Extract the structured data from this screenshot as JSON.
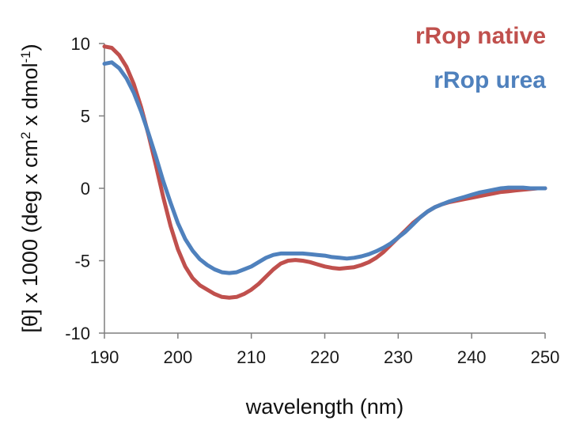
{
  "chart_data": {
    "type": "line",
    "title": "",
    "xlabel": "wavelength (nm)",
    "ylabel_main": "[θ] x 1000 (deg x cm",
    "ylabel_sup1": "2",
    "ylabel_mid": " x dmol",
    "ylabel_sup2": "-1",
    "ylabel_end": ")",
    "xlim": [
      190,
      250
    ],
    "ylim": [
      -10,
      10
    ],
    "xticks": [
      190,
      200,
      210,
      220,
      230,
      240,
      250
    ],
    "yticks": [
      -10,
      -5,
      0,
      5,
      10
    ],
    "grid": false,
    "legend_position": "top-right",
    "series": [
      {
        "name": "rRop native",
        "color": "#c0504d",
        "x": [
          190,
          191,
          192,
          193,
          194,
          195,
          196,
          197,
          198,
          199,
          200,
          201,
          202,
          203,
          204,
          205,
          206,
          207,
          208,
          209,
          210,
          211,
          212,
          213,
          214,
          215,
          216,
          217,
          218,
          219,
          220,
          221,
          222,
          223,
          224,
          225,
          226,
          227,
          228,
          229,
          230,
          231,
          232,
          233,
          234,
          235,
          236,
          237,
          238,
          239,
          240,
          241,
          242,
          243,
          244,
          245,
          246,
          247,
          248,
          249,
          250
        ],
        "values": [
          9.8,
          9.7,
          9.2,
          8.4,
          7.2,
          5.6,
          3.7,
          1.6,
          -0.6,
          -2.6,
          -4.2,
          -5.4,
          -6.2,
          -6.7,
          -7.0,
          -7.3,
          -7.5,
          -7.55,
          -7.5,
          -7.3,
          -7.0,
          -6.6,
          -6.1,
          -5.6,
          -5.2,
          -5.0,
          -4.95,
          -5.0,
          -5.1,
          -5.25,
          -5.4,
          -5.5,
          -5.55,
          -5.5,
          -5.45,
          -5.3,
          -5.1,
          -4.8,
          -4.4,
          -3.9,
          -3.4,
          -2.9,
          -2.4,
          -2.0,
          -1.6,
          -1.3,
          -1.1,
          -0.95,
          -0.85,
          -0.75,
          -0.65,
          -0.55,
          -0.45,
          -0.35,
          -0.25,
          -0.2,
          -0.15,
          -0.1,
          -0.05,
          0.0,
          0.0
        ]
      },
      {
        "name": "rRop urea",
        "color": "#4f81bd",
        "x": [
          190,
          191,
          192,
          193,
          194,
          195,
          196,
          197,
          198,
          199,
          200,
          201,
          202,
          203,
          204,
          205,
          206,
          207,
          208,
          209,
          210,
          211,
          212,
          213,
          214,
          215,
          216,
          217,
          218,
          219,
          220,
          221,
          222,
          223,
          224,
          225,
          226,
          227,
          228,
          229,
          230,
          231,
          232,
          233,
          234,
          235,
          236,
          237,
          238,
          239,
          240,
          241,
          242,
          243,
          244,
          245,
          246,
          247,
          248,
          249,
          250
        ],
        "values": [
          8.6,
          8.7,
          8.3,
          7.6,
          6.6,
          5.3,
          3.8,
          2.2,
          0.5,
          -1.0,
          -2.4,
          -3.5,
          -4.3,
          -4.9,
          -5.3,
          -5.6,
          -5.8,
          -5.85,
          -5.8,
          -5.6,
          -5.4,
          -5.1,
          -4.8,
          -4.6,
          -4.5,
          -4.5,
          -4.5,
          -4.5,
          -4.55,
          -4.6,
          -4.65,
          -4.75,
          -4.8,
          -4.85,
          -4.8,
          -4.7,
          -4.55,
          -4.35,
          -4.1,
          -3.8,
          -3.4,
          -3.0,
          -2.5,
          -2.0,
          -1.6,
          -1.3,
          -1.1,
          -0.9,
          -0.75,
          -0.6,
          -0.45,
          -0.3,
          -0.2,
          -0.1,
          0.0,
          0.05,
          0.05,
          0.05,
          0.0,
          0.0,
          0.0
        ]
      }
    ]
  }
}
